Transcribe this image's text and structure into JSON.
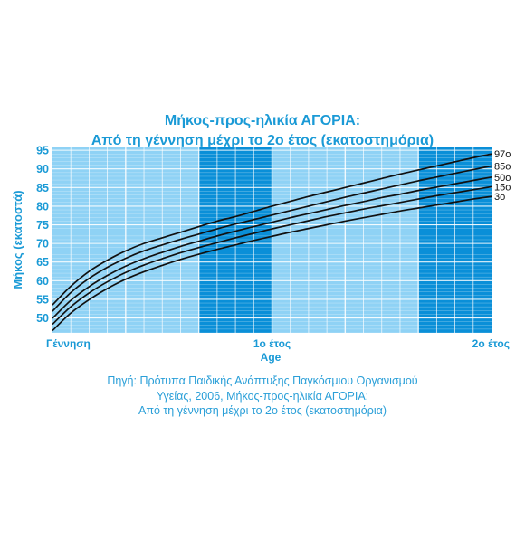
{
  "colors": {
    "accent": "#1a9ad6",
    "band_dark": "#0a8fd8",
    "band_light": "#8fd2f5",
    "curve": "#111111",
    "label_text": "#1a9ad6"
  },
  "source_lines": [
    "Πηγή: Πρότυπα Παιδικής Ανάπτυξης Παγκόσμιου Οργανισμού",
    "Υγείας, 2006, Μήκος-προς-ηλικία ΑΓΟΡΙΑ:",
    "Από τη γέννηση μέχρι το 2ο έτος (εκατοστημόρια)"
  ],
  "chart_data": {
    "type": "line",
    "title": "Μήκος-προς-ηλικία ΑΓΟΡΙΑ:",
    "subtitle": "Από τη γέννηση μέχρι το 2ο έτος (εκατοστημόρια)",
    "xlabel": "Age",
    "ylabel": "Μήκος (εκατοστά)",
    "x_unit": "months",
    "xlim": [
      0,
      24
    ],
    "ylim": [
      46,
      96
    ],
    "y_ticks": [
      50,
      55,
      60,
      65,
      70,
      75,
      80,
      85,
      90,
      95
    ],
    "x_ticks": [
      {
        "value": 0,
        "label": "Γέννηση"
      },
      {
        "value": 12,
        "label": "1ο έτος"
      },
      {
        "value": 24,
        "label": "2ο έτος"
      }
    ],
    "background_bands": [
      {
        "from": 0,
        "to": 4,
        "shade": "light"
      },
      {
        "from": 4,
        "to": 8,
        "shade": "light"
      },
      {
        "from": 8,
        "to": 12,
        "shade": "dark"
      },
      {
        "from": 12,
        "to": 16,
        "shade": "light"
      },
      {
        "from": 16,
        "to": 20,
        "shade": "light"
      },
      {
        "from": 20,
        "to": 24,
        "shade": "dark"
      }
    ],
    "grid": true,
    "x": [
      0,
      1,
      2,
      3,
      4,
      5,
      6,
      7,
      8,
      9,
      10,
      11,
      12,
      13,
      14,
      15,
      16,
      17,
      18,
      19,
      20,
      21,
      22,
      23,
      24
    ],
    "series": [
      {
        "name": "97ο",
        "values": [
          53.5,
          58.5,
          62.5,
          65.5,
          68.0,
          70.0,
          71.5,
          73.0,
          74.5,
          76.0,
          77.2,
          78.6,
          80.0,
          81.3,
          82.6,
          83.8,
          85.0,
          86.2,
          87.4,
          88.6,
          89.7,
          90.8,
          91.9,
          93.0,
          94.0
        ]
      },
      {
        "name": "85ο",
        "values": [
          51.8,
          56.8,
          60.6,
          63.6,
          66.0,
          68.0,
          69.6,
          71.1,
          72.5,
          73.9,
          75.2,
          76.4,
          77.6,
          78.8,
          80.0,
          81.2,
          82.4,
          83.5,
          84.6,
          85.7,
          86.8,
          87.8,
          88.8,
          89.8,
          90.8
        ]
      },
      {
        "name": "50ο",
        "values": [
          49.9,
          54.7,
          58.4,
          61.4,
          63.9,
          65.9,
          67.6,
          69.2,
          70.6,
          72.0,
          73.3,
          74.5,
          75.7,
          76.9,
          78.0,
          79.1,
          80.2,
          81.2,
          82.3,
          83.2,
          84.2,
          85.1,
          86.0,
          86.9,
          87.8
        ]
      },
      {
        "name": "15ο",
        "values": [
          48.3,
          53.0,
          56.7,
          59.7,
          62.2,
          64.2,
          65.9,
          67.5,
          68.9,
          70.2,
          71.5,
          72.7,
          73.9,
          75.0,
          76.1,
          77.2,
          78.2,
          79.2,
          80.1,
          81.0,
          81.9,
          82.8,
          83.6,
          84.4,
          85.2
        ]
      },
      {
        "name": "3ο",
        "values": [
          46.6,
          51.3,
          54.9,
          57.9,
          60.4,
          62.4,
          64.1,
          65.7,
          67.1,
          68.4,
          69.6,
          70.8,
          71.9,
          73.0,
          74.0,
          75.0,
          76.0,
          76.9,
          77.8,
          78.7,
          79.5,
          80.3,
          81.1,
          81.9,
          82.6
        ]
      }
    ]
  }
}
